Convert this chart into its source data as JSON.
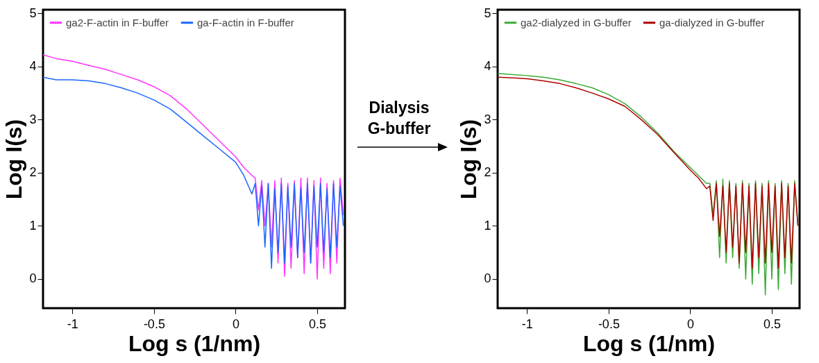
{
  "chart_data": [
    {
      "type": "line",
      "xlabel": "Log s (1/nm)",
      "ylabel": "Log I(s)",
      "xlim": [
        -1.18,
        0.67
      ],
      "ylim": [
        -0.55,
        5.07
      ],
      "xticks": [
        -1,
        -0.5,
        0,
        0.5
      ],
      "yticks": [
        0,
        1,
        2,
        3,
        4,
        5
      ],
      "grid": false,
      "legend": "top left",
      "annotations": [
        "Dialysis G-buffer"
      ],
      "x": [
        -1.18,
        -1.1,
        -1.0,
        -0.9,
        -0.8,
        -0.7,
        -0.6,
        -0.5,
        -0.4,
        -0.3,
        -0.2,
        -0.1,
        0,
        0.05,
        0.1,
        0.12,
        0.14,
        0.16,
        0.18,
        0.2,
        0.22,
        0.24,
        0.26,
        0.28,
        0.3,
        0.32,
        0.34,
        0.36,
        0.38,
        0.4,
        0.42,
        0.44,
        0.46,
        0.48,
        0.5,
        0.52,
        0.54,
        0.56,
        0.58,
        0.6,
        0.62,
        0.64,
        0.66
      ],
      "series": [
        {
          "name": "ga2-F-actin in F-buffer",
          "color": "#ff33ff",
          "values": [
            4.22,
            4.15,
            4.1,
            4.02,
            3.95,
            3.85,
            3.75,
            3.62,
            3.45,
            3.2,
            2.9,
            2.6,
            2.3,
            2.1,
            1.95,
            1.9,
            1.3,
            1.85,
            1.0,
            1.8,
            0.6,
            1.85,
            0.3,
            1.9,
            0.05,
            1.8,
            0.2,
            1.85,
            0.4,
            1.9,
            0.1,
            1.9,
            0.3,
            1.85,
            0.0,
            1.9,
            0.2,
            1.8,
            0.1,
            1.85,
            0.3,
            1.9,
            1.2
          ]
        },
        {
          "name": "ga-F-actin in F-buffer",
          "color": "#1a66ff",
          "values": [
            3.8,
            3.75,
            3.75,
            3.73,
            3.68,
            3.6,
            3.5,
            3.37,
            3.2,
            2.95,
            2.7,
            2.45,
            2.2,
            1.95,
            1.6,
            1.8,
            1.0,
            1.75,
            0.6,
            1.8,
            0.2,
            1.7,
            0.5,
            1.8,
            0.3,
            1.75,
            0.6,
            1.8,
            0.4,
            1.7,
            0.5,
            1.8,
            0.3,
            1.75,
            0.6,
            1.8,
            0.5,
            1.7,
            0.4,
            1.8,
            0.6,
            1.75,
            1.0
          ]
        }
      ]
    },
    {
      "type": "line",
      "xlabel": "Log s (1/nm)",
      "ylabel": "Log I(s)",
      "xlim": [
        -1.18,
        0.67
      ],
      "ylim": [
        -0.55,
        5.07
      ],
      "xticks": [
        -1,
        -0.5,
        0,
        0.5
      ],
      "yticks": [
        0,
        1,
        2,
        3,
        4,
        5
      ],
      "grid": false,
      "legend": "top left",
      "x": [
        -1.18,
        -1.1,
        -1.0,
        -0.9,
        -0.8,
        -0.7,
        -0.6,
        -0.5,
        -0.4,
        -0.3,
        -0.2,
        -0.1,
        0,
        0.05,
        0.1,
        0.12,
        0.14,
        0.16,
        0.18,
        0.2,
        0.22,
        0.24,
        0.26,
        0.28,
        0.3,
        0.32,
        0.34,
        0.36,
        0.38,
        0.4,
        0.42,
        0.44,
        0.46,
        0.48,
        0.5,
        0.52,
        0.54,
        0.56,
        0.58,
        0.6,
        0.62,
        0.64,
        0.66
      ],
      "series": [
        {
          "name": "ga2-dialyzed in G-buffer",
          "color": "#3aaa35",
          "values": [
            3.87,
            3.85,
            3.83,
            3.8,
            3.75,
            3.68,
            3.6,
            3.47,
            3.3,
            3.05,
            2.75,
            2.4,
            2.1,
            1.95,
            1.8,
            1.8,
            1.2,
            1.85,
            0.4,
            1.88,
            0.3,
            1.85,
            0.4,
            1.8,
            0.2,
            1.85,
            0.0,
            1.8,
            -0.1,
            1.85,
            0.1,
            1.8,
            -0.3,
            1.85,
            0.0,
            1.8,
            -0.2,
            1.85,
            0.1,
            1.8,
            -0.1,
            1.85,
            1.0
          ]
        },
        {
          "name": "ga-dialyzed in G-buffer",
          "color": "#b00000",
          "values": [
            3.8,
            3.79,
            3.77,
            3.73,
            3.68,
            3.6,
            3.5,
            3.39,
            3.25,
            3.0,
            2.72,
            2.38,
            2.05,
            1.9,
            1.7,
            1.75,
            1.1,
            1.8,
            0.8,
            1.75,
            0.5,
            1.8,
            0.6,
            1.75,
            0.3,
            1.8,
            0.5,
            1.75,
            0.2,
            1.8,
            0.4,
            1.75,
            0.3,
            1.8,
            0.5,
            1.75,
            0.2,
            1.8,
            0.4,
            1.75,
            0.3,
            1.8,
            1.0
          ]
        }
      ]
    }
  ]
}
